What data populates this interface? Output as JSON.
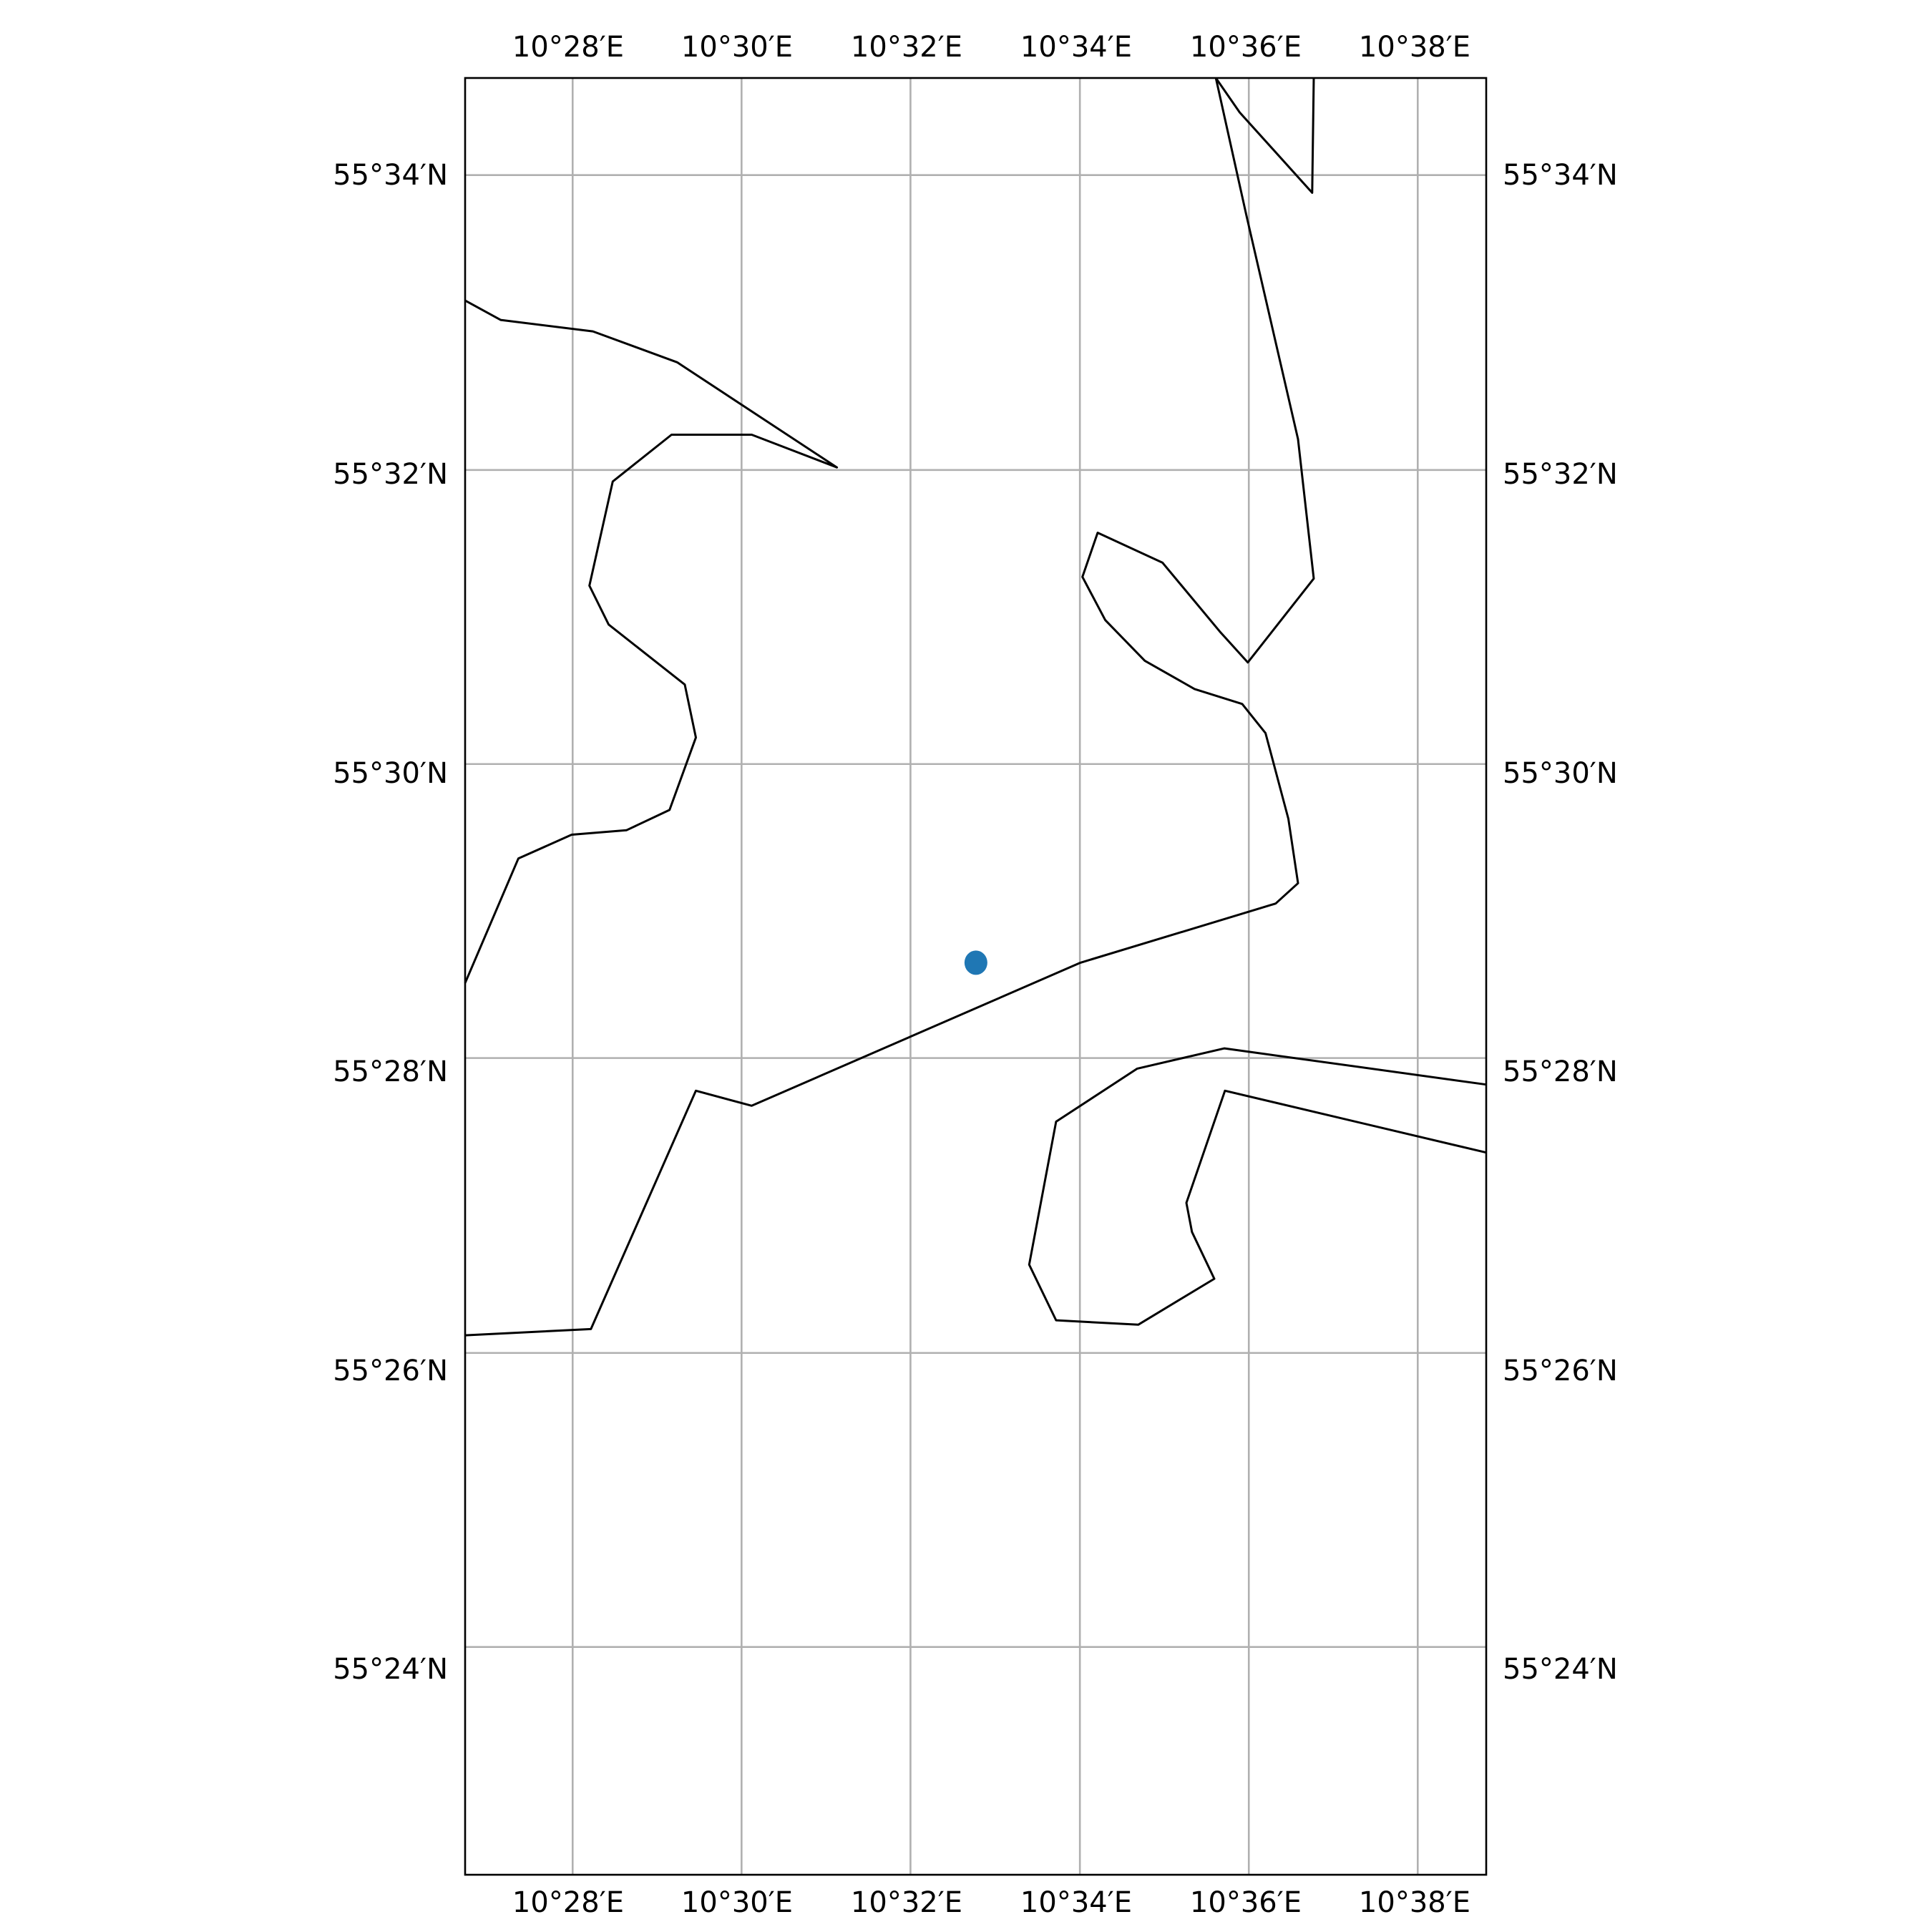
{
  "map": {
    "projection": "plate carree",
    "extent": {
      "lon_min": 10.4455,
      "lon_max": 10.6468,
      "lat_min": 55.3742,
      "lat_max": 55.5777
    },
    "gridlines": {
      "lon_values": [
        10.4667,
        10.5,
        10.5333,
        10.5667,
        10.6,
        10.6333
      ],
      "lat_values": [
        55.4,
        55.4333,
        55.4667,
        55.5,
        55.5333,
        55.5667
      ],
      "color": "#b0b0b0"
    },
    "lon_labels": [
      "10°28′E",
      "10°30′E",
      "10°32′E",
      "10°34′E",
      "10°36′E",
      "10°38′E"
    ],
    "lat_labels": [
      "55°24′N",
      "55°26′N",
      "55°28′N",
      "55°30′N",
      "55°32′N",
      "55°34′N"
    ],
    "coastline_color": "#000000",
    "coastlines": [
      [
        [
          10.4455,
          55.5525
        ],
        [
          10.4525,
          55.5503
        ],
        [
          10.4707,
          55.549
        ],
        [
          10.4873,
          55.5455
        ],
        [
          10.5188,
          55.5336
        ],
        [
          10.502,
          55.5373
        ],
        [
          10.4862,
          55.5373
        ],
        [
          10.4746,
          55.532
        ],
        [
          10.47,
          55.5202
        ],
        [
          10.4738,
          55.5158
        ],
        [
          10.4888,
          55.509
        ],
        [
          10.491,
          55.503
        ],
        [
          10.4858,
          55.4948
        ],
        [
          10.4773,
          55.4925
        ],
        [
          10.4665,
          55.492
        ],
        [
          10.456,
          55.4893
        ],
        [
          10.4455,
          55.4752
        ]
      ],
      [
        [
          10.4455,
          55.4353
        ],
        [
          10.4703,
          55.436
        ],
        [
          10.491,
          55.463
        ],
        [
          10.502,
          55.4613
        ],
        [
          10.5668,
          55.4775
        ],
        [
          10.6053,
          55.4842
        ],
        [
          10.6097,
          55.4865
        ],
        [
          10.6078,
          55.4938
        ],
        [
          10.6033,
          55.5035
        ],
        [
          10.5987,
          55.5068
        ],
        [
          10.5893,
          55.5085
        ],
        [
          10.5795,
          55.5117
        ],
        [
          10.5717,
          55.5163
        ],
        [
          10.5672,
          55.5212
        ],
        [
          10.5702,
          55.5262
        ],
        [
          10.583,
          55.5228
        ],
        [
          10.5943,
          55.515
        ],
        [
          10.5998,
          55.5115
        ],
        [
          10.6128,
          55.521
        ],
        [
          10.6097,
          55.5368
        ],
        [
          10.5995,
          55.5622
        ],
        [
          10.5935,
          55.5777
        ]
      ],
      [
        [
          10.5935,
          55.5777
        ],
        [
          10.5982,
          55.5738
        ],
        [
          10.6125,
          55.5647
        ],
        [
          10.6128,
          55.5777
        ]
      ],
      [
        [
          10.6468,
          55.4637
        ],
        [
          10.5952,
          55.4678
        ],
        [
          10.578,
          55.4655
        ],
        [
          10.562,
          55.4595
        ],
        [
          10.5567,
          55.4433
        ],
        [
          10.562,
          55.437
        ],
        [
          10.5782,
          55.4365
        ],
        [
          10.5932,
          55.4417
        ],
        [
          10.5888,
          55.447
        ],
        [
          10.5877,
          55.4503
        ],
        [
          10.5953,
          55.463
        ],
        [
          10.6468,
          55.456
        ]
      ]
    ],
    "marker": {
      "lon": 10.5462,
      "lat": 55.4775,
      "color": "#1f77b4"
    }
  }
}
